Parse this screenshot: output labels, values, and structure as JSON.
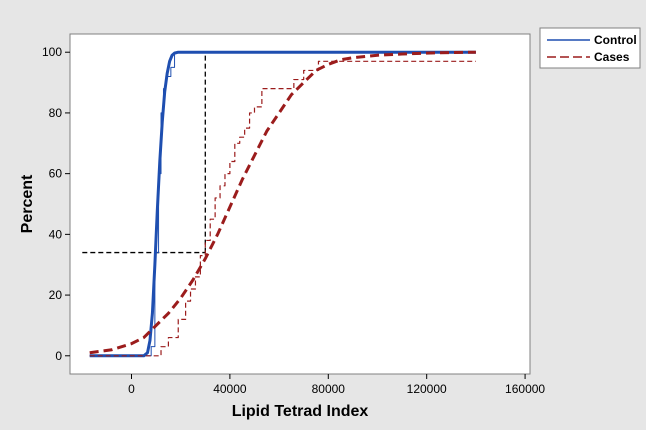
{
  "chart_data": {
    "type": "line",
    "title": "",
    "xlabel": "Lipid Tetrad Index",
    "ylabel": "Percent",
    "xlim": [
      -25000,
      162000
    ],
    "ylim": [
      -6,
      106
    ],
    "xticks": [
      0,
      40000,
      80000,
      120000,
      160000
    ],
    "xtick_labels": [
      "0",
      "40000",
      "80000",
      "120000",
      "160000"
    ],
    "yticks": [
      0,
      20,
      40,
      60,
      80,
      100
    ],
    "ytick_labels": [
      "0",
      "20",
      "40",
      "60",
      "80",
      "100"
    ],
    "grid": false,
    "legend_position": "top-right",
    "colors": {
      "background": "#e6e6e6",
      "plot_area": "#ffffff",
      "control": "#1f4fb0",
      "cases": "#9b1c1c",
      "reference": "#000000"
    },
    "series": [
      {
        "name": "Control",
        "legend": true,
        "style": "solid",
        "x": [
          -17000,
          5000,
          6500,
          7500,
          8500,
          9500,
          10500,
          11500,
          12500,
          13500,
          14500,
          15500,
          16500,
          17500,
          19000,
          30000,
          140000
        ],
        "y": [
          0,
          0,
          1,
          5,
          14,
          30,
          48,
          64,
          77,
          87,
          93,
          97,
          99,
          99.7,
          100,
          100,
          100
        ]
      },
      {
        "name": "Control empirical",
        "legend": false,
        "style": "step",
        "x": [
          -17000,
          6000,
          8000,
          9500,
          11000,
          12000,
          13000,
          14000,
          16000,
          17500,
          30000,
          140000
        ],
        "y": [
          0,
          0,
          3,
          34,
          60,
          80,
          88,
          92,
          95,
          100,
          100,
          100
        ]
      },
      {
        "name": "Cases",
        "legend": true,
        "style": "dashed",
        "x": [
          -17000,
          -8000,
          0,
          5000,
          10000,
          15000,
          20000,
          25000,
          30000,
          35000,
          40000,
          45000,
          50000,
          55000,
          60000,
          65000,
          70000,
          75000,
          80000,
          85000,
          90000,
          100000,
          110000,
          120000,
          130000,
          140000
        ],
        "y": [
          1,
          2,
          4,
          6,
          10,
          14,
          19,
          25,
          32,
          40,
          49,
          58,
          66,
          74,
          80,
          86,
          90,
          94,
          96,
          97.5,
          98.2,
          99,
          99.4,
          99.7,
          99.9,
          100
        ]
      },
      {
        "name": "Cases empirical",
        "legend": false,
        "style": "step",
        "x": [
          -17000,
          9000,
          12000,
          15000,
          19000,
          22000,
          24000,
          26000,
          28000,
          30000,
          32000,
          34000,
          36000,
          38000,
          40000,
          42000,
          44000,
          46000,
          48000,
          50000,
          53000,
          62000,
          66000,
          70000,
          76000,
          80000,
          140000
        ],
        "y": [
          0,
          0,
          3,
          6,
          12,
          18,
          22,
          26,
          33,
          38,
          45,
          52,
          56,
          60,
          64,
          70,
          72,
          75,
          80,
          82,
          88,
          88,
          91,
          94,
          97,
          97,
          97
        ]
      }
    ],
    "reference_lines": [
      {
        "x": [
          -20000,
          30000
        ],
        "y": [
          34,
          34
        ]
      },
      {
        "x": [
          30000,
          30000
        ],
        "y": [
          34,
          100
        ]
      }
    ]
  }
}
